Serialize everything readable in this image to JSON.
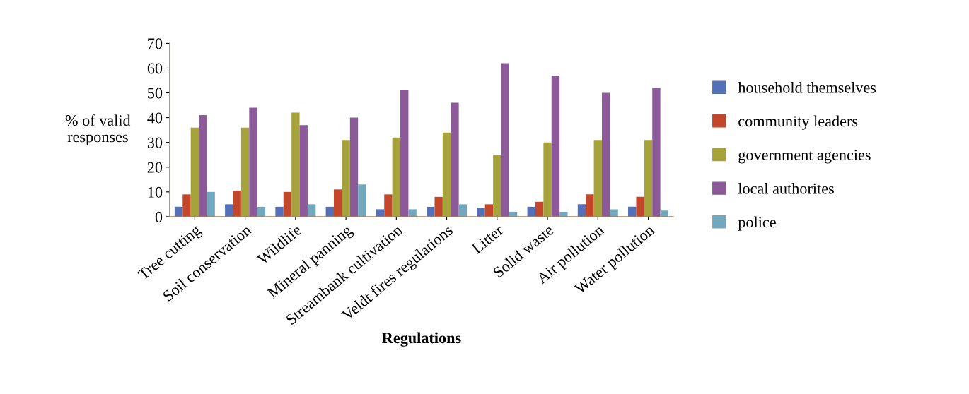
{
  "chart_data": {
    "type": "bar",
    "xlabel": "Regulations",
    "ylabel": "% of valid\nresponses",
    "categories": [
      "Tree cutting",
      "Soil conservation",
      "Wildlife",
      "Mineral panning",
      "Streambank cultivation",
      "Veldt fires regulations",
      "Litter",
      "Solid waste",
      "Air pollution",
      "Water pollution"
    ],
    "series": [
      {
        "name": "household themselves",
        "color": "#5470b8",
        "values": [
          4,
          5,
          4,
          4,
          3,
          4,
          3.5,
          4,
          5,
          4
        ]
      },
      {
        "name": "community leaders",
        "color": "#c4472c",
        "values": [
          9,
          10.5,
          10,
          11,
          9,
          8,
          5,
          6,
          9,
          8
        ]
      },
      {
        "name": "government agencies",
        "color": "#a6a23c",
        "values": [
          36,
          36,
          42,
          31,
          32,
          34,
          25,
          30,
          31,
          31
        ]
      },
      {
        "name": "local authorites",
        "color": "#8c5a98",
        "values": [
          41,
          44,
          37,
          40,
          51,
          46,
          62,
          57,
          50,
          52
        ]
      },
      {
        "name": "police",
        "color": "#72a8bd",
        "values": [
          10,
          4,
          5,
          13,
          3,
          5,
          2,
          2,
          3,
          2.5
        ]
      }
    ],
    "ylim": [
      0,
      70
    ],
    "yticks": [
      0,
      10,
      20,
      30,
      40,
      50,
      60,
      70
    ],
    "grid": false,
    "legend": "right"
  }
}
